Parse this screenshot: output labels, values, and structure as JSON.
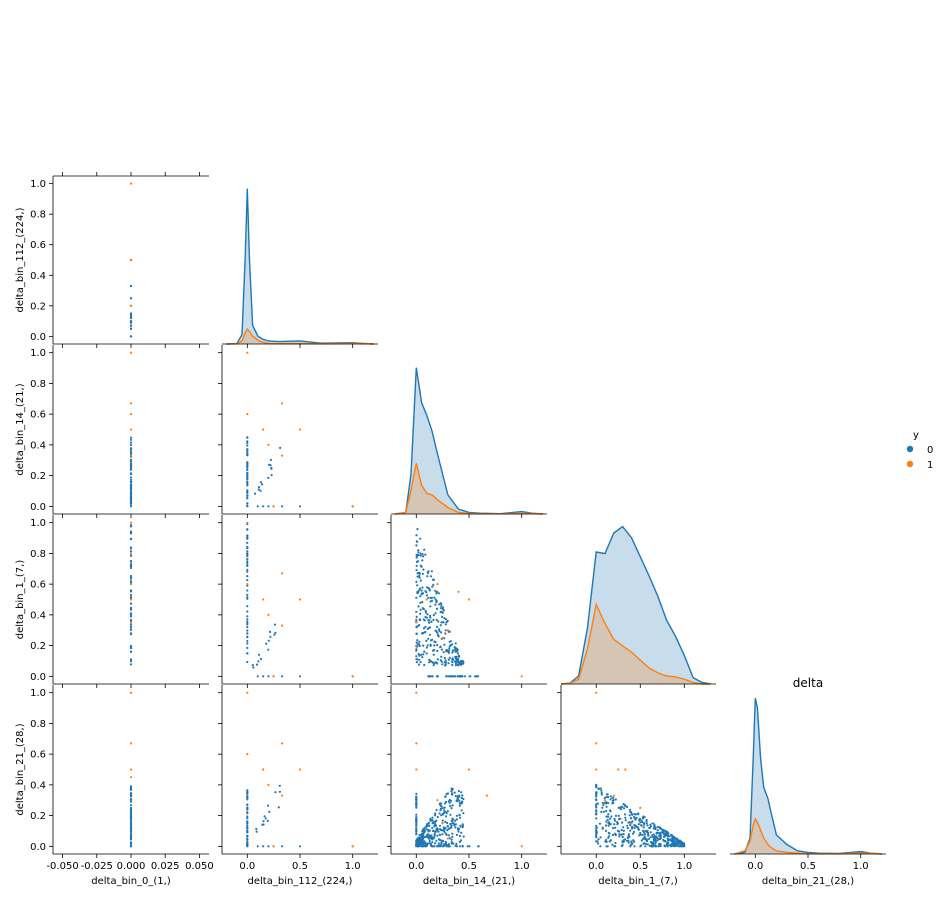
{
  "chart_data": {
    "type": "scatter",
    "kind": "pairplot-corner",
    "title": "delta",
    "variables": [
      "delta_bin_0_(1,)",
      "delta_bin_112_(224,)",
      "delta_bin_14_(21,)",
      "delta_bin_1_(7,)",
      "delta_bin_21_(28,)"
    ],
    "hue": {
      "title": "y",
      "levels": [
        "0",
        "1"
      ],
      "colors": [
        "#1f77b4",
        "#ff7f0e"
      ]
    },
    "x_ticks": [
      [
        "-0.050",
        "-0.025",
        "0.000",
        "0.025",
        "0.050"
      ],
      [
        "0.0",
        "0.5",
        "1.0"
      ],
      [
        "0.0",
        "0.5",
        "1.0"
      ],
      [
        "0.0",
        "0.5",
        "1.0"
      ],
      [
        "0.0",
        "0.5",
        "1.0"
      ]
    ],
    "y_ticks": [
      "0.0",
      "0.2",
      "0.4",
      "0.6",
      "0.8",
      "1.0"
    ],
    "x_ranges": [
      [
        -0.057,
        0.057
      ],
      [
        -0.24,
        1.24
      ],
      [
        -0.24,
        1.24
      ],
      [
        -0.4,
        1.36
      ],
      [
        -0.24,
        1.24
      ]
    ],
    "y_range": [
      -0.05,
      1.05
    ],
    "kde": {
      "1": {
        "x": [
          -0.2,
          -0.1,
          -0.05,
          -0.02,
          0.0,
          0.02,
          0.05,
          0.1,
          0.15,
          0.2,
          0.3,
          0.5,
          0.7,
          1.0,
          1.1,
          1.2
        ],
        "y0": [
          0,
          0.002,
          0.06,
          0.55,
          0.99,
          0.55,
          0.12,
          0.05,
          0.03,
          0.02,
          0.015,
          0.02,
          0.005,
          0.008,
          0.003,
          0
        ],
        "y1": [
          0,
          0.001,
          0.02,
          0.07,
          0.095,
          0.08,
          0.05,
          0.025,
          0.01,
          0.004,
          0.002,
          0.003,
          0.001,
          0.004,
          0.004,
          0
        ]
      },
      "2": {
        "x": [
          -0.2,
          -0.1,
          -0.05,
          0.0,
          0.05,
          0.1,
          0.15,
          0.2,
          0.3,
          0.4,
          0.5,
          0.6,
          0.8,
          1.0,
          1.1,
          1.2
        ],
        "y0": [
          0,
          0.01,
          0.25,
          0.92,
          0.7,
          0.62,
          0.52,
          0.38,
          0.12,
          0.03,
          0.01,
          0.005,
          0.002,
          0.015,
          0.005,
          0
        ],
        "y1": [
          0,
          0.01,
          0.15,
          0.32,
          0.18,
          0.13,
          0.12,
          0.09,
          0.04,
          0.01,
          0.003,
          0.001,
          0.001,
          0.003,
          0.003,
          0
        ]
      },
      "3": {
        "x": [
          -0.4,
          -0.3,
          -0.2,
          -0.1,
          0.0,
          0.1,
          0.2,
          0.3,
          0.4,
          0.5,
          0.6,
          0.7,
          0.8,
          0.9,
          1.0,
          1.1,
          1.2,
          1.3
        ],
        "y0": [
          0,
          0.005,
          0.05,
          0.35,
          0.83,
          0.82,
          0.95,
          0.99,
          0.92,
          0.8,
          0.68,
          0.55,
          0.4,
          0.3,
          0.18,
          0.04,
          0.01,
          0
        ],
        "y1": [
          0,
          0.005,
          0.03,
          0.22,
          0.5,
          0.38,
          0.28,
          0.24,
          0.2,
          0.15,
          0.1,
          0.07,
          0.05,
          0.045,
          0.03,
          0.01,
          0,
          0
        ]
      },
      "4": {
        "x": [
          -0.2,
          -0.1,
          -0.05,
          -0.02,
          0.0,
          0.02,
          0.05,
          0.08,
          0.12,
          0.15,
          0.2,
          0.3,
          0.4,
          0.5,
          0.6,
          0.8,
          1.0,
          1.1,
          1.2
        ],
        "y0": [
          0,
          0.01,
          0.1,
          0.6,
          0.98,
          0.92,
          0.6,
          0.42,
          0.35,
          0.26,
          0.12,
          0.06,
          0.02,
          0.01,
          0.005,
          0.003,
          0.015,
          0.005,
          0
        ],
        "y1": [
          0,
          0.02,
          0.08,
          0.18,
          0.22,
          0.2,
          0.15,
          0.1,
          0.06,
          0.04,
          0.02,
          0.01,
          0.005,
          0.002,
          0.001,
          0.001,
          0.005,
          0.005,
          0
        ]
      }
    }
  }
}
